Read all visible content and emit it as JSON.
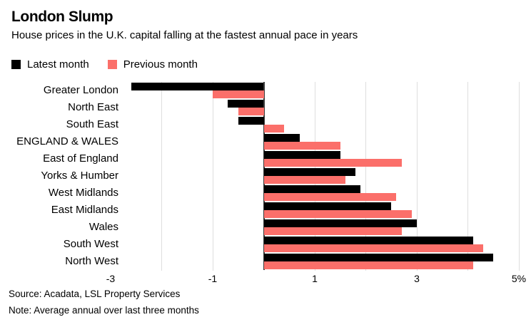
{
  "header": {
    "title": "London Slump",
    "subtitle": "House prices in the U.K. capital falling at the fastest annual pace in years"
  },
  "legend": [
    {
      "label": "Latest month",
      "color": "#000000"
    },
    {
      "label": "Previous month",
      "color": "#FB6F6A"
    }
  ],
  "chart_data": {
    "type": "bar",
    "orientation": "horizontal",
    "title": "London Slump",
    "subtitle": "House prices in the U.K. capital falling at the fastest annual pace in years",
    "categories": [
      "Greater London",
      "North East",
      "South East",
      "ENGLAND & WALES",
      "East of England",
      "Yorks & Humber",
      "West Midlands",
      "East Midlands",
      "Wales",
      "South West",
      "North West"
    ],
    "series": [
      {
        "name": "Latest month",
        "color": "#000000",
        "values": [
          -2.6,
          -0.7,
          -0.5,
          0.7,
          1.5,
          1.8,
          1.9,
          2.5,
          3.0,
          4.1,
          4.5
        ]
      },
      {
        "name": "Previous month",
        "color": "#FB6F6A",
        "values": [
          -1.0,
          -0.5,
          0.4,
          1.5,
          2.7,
          1.6,
          2.6,
          2.9,
          2.7,
          4.3,
          4.1
        ]
      }
    ],
    "xlim": [
      -3,
      5
    ],
    "unit": "%",
    "xticks": [
      {
        "value": -3,
        "label": "-3"
      },
      {
        "value": -1,
        "label": "-1"
      },
      {
        "value": 1,
        "label": "1"
      },
      {
        "value": 3,
        "label": "3"
      },
      {
        "value": 5,
        "label": "5%"
      }
    ],
    "gridlines": [
      -2,
      -1,
      1,
      2,
      3,
      4,
      5
    ],
    "grid": "vertical-light",
    "legend_position": "top-left",
    "zero_baseline": true
  },
  "colors": {
    "latest": "#000000",
    "previous": "#FB6F6A",
    "gridline": "#DEDEDE",
    "zero_line": "#3A3A3A",
    "background": "#FFFFFF",
    "text": "#000000"
  },
  "footer": {
    "source": "Source: Acadata, LSL Property Services",
    "note": "Note: Average annual over last three months"
  }
}
